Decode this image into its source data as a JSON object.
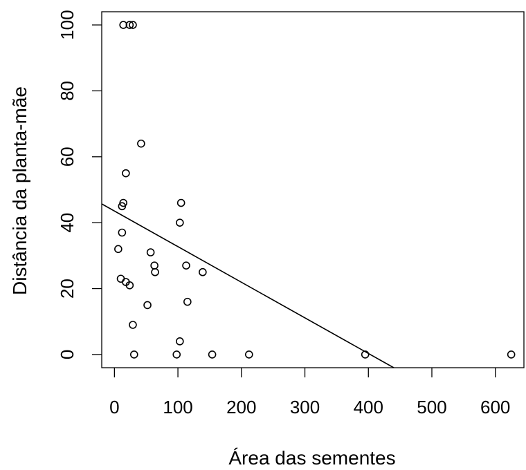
{
  "chart_data": {
    "type": "scatter",
    "title": "",
    "xlabel": "Área das sementes",
    "ylabel": "Distância da planta-mãe",
    "xlim": [
      -20,
      645
    ],
    "ylim": [
      -4,
      104
    ],
    "x_ticks": [
      0,
      100,
      200,
      300,
      400,
      500,
      600
    ],
    "x_tick_labels": [
      "0",
      "100",
      "200",
      "300",
      "400",
      "500",
      "600"
    ],
    "y_ticks": [
      0,
      20,
      40,
      60,
      80,
      100
    ],
    "y_tick_labels": [
      "0",
      "20",
      "40",
      "60",
      "80",
      "100"
    ],
    "grid": false,
    "points": [
      {
        "x": 14,
        "y": 100
      },
      {
        "x": 24,
        "y": 100
      },
      {
        "x": 29,
        "y": 100
      },
      {
        "x": 42,
        "y": 64
      },
      {
        "x": 18,
        "y": 55
      },
      {
        "x": 14,
        "y": 46
      },
      {
        "x": 12,
        "y": 45
      },
      {
        "x": 105,
        "y": 46
      },
      {
        "x": 103,
        "y": 40
      },
      {
        "x": 12,
        "y": 37
      },
      {
        "x": 6,
        "y": 32
      },
      {
        "x": 57,
        "y": 31
      },
      {
        "x": 63,
        "y": 27
      },
      {
        "x": 64,
        "y": 25
      },
      {
        "x": 113,
        "y": 27
      },
      {
        "x": 139,
        "y": 25
      },
      {
        "x": 10,
        "y": 23
      },
      {
        "x": 18,
        "y": 22
      },
      {
        "x": 24,
        "y": 21
      },
      {
        "x": 115,
        "y": 16
      },
      {
        "x": 52,
        "y": 15
      },
      {
        "x": 29,
        "y": 9
      },
      {
        "x": 103,
        "y": 4
      },
      {
        "x": 31,
        "y": 0
      },
      {
        "x": 98,
        "y": 0
      },
      {
        "x": 154,
        "y": 0
      },
      {
        "x": 212,
        "y": 0
      },
      {
        "x": 395,
        "y": 0
      },
      {
        "x": 625,
        "y": 0
      }
    ],
    "fit_line": {
      "x1": -20,
      "y1": 45.7,
      "x2": 440,
      "y2": -4
    }
  }
}
